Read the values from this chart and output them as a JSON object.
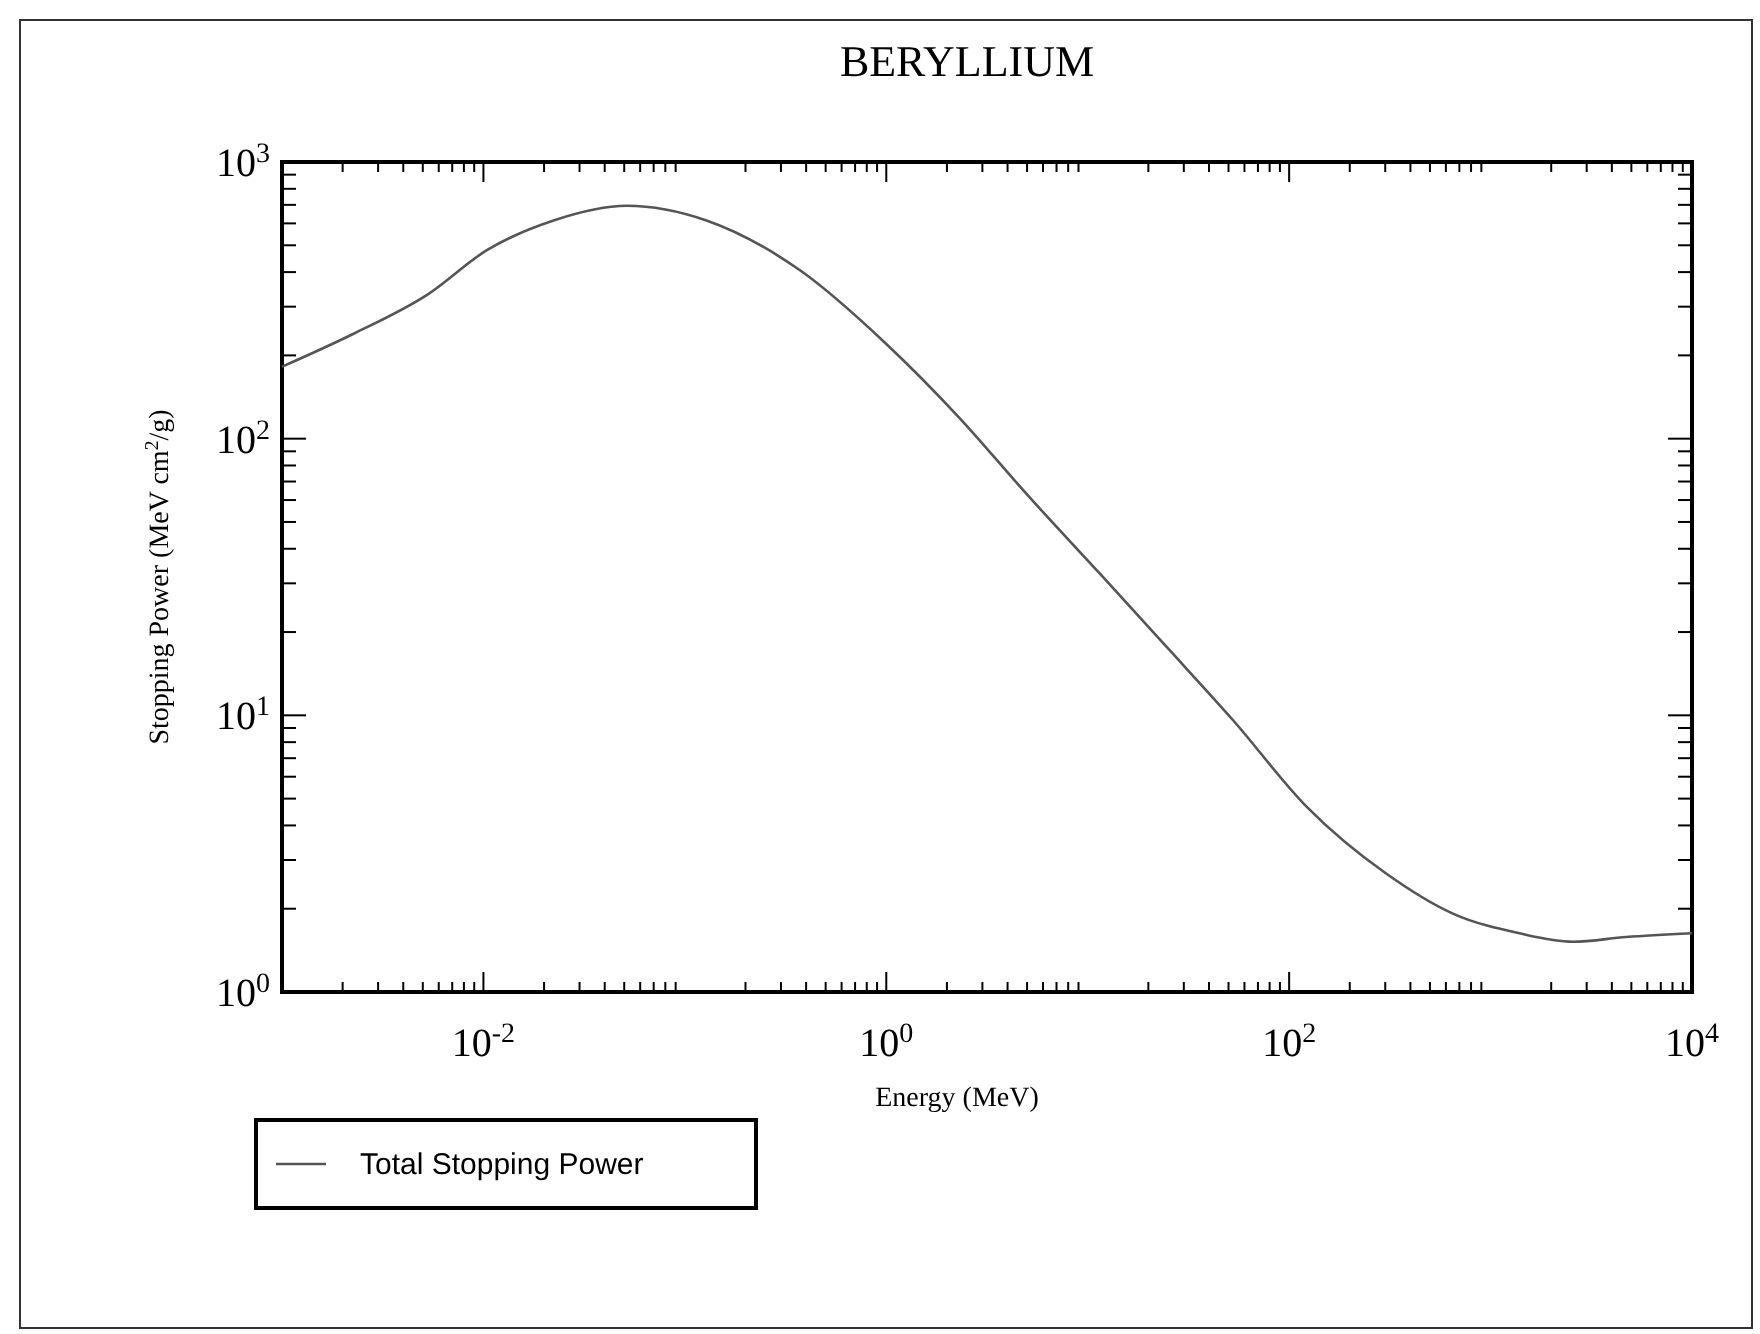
{
  "chart_data": {
    "type": "line",
    "title": "BERYLLIUM",
    "xlabel": "Energy (MeV)",
    "ylabel": "Stopping Power (MeV cm$^{2}$/g)",
    "log": "xy",
    "xlim": [
      0.001,
      10000
    ],
    "ylim": [
      1,
      1000
    ],
    "xticks": [
      {
        "value": 0.01,
        "label": "10$^{-2}$"
      },
      {
        "value": 1,
        "label": "10$^{0}$"
      },
      {
        "value": 100,
        "label": "10$^{2}$"
      },
      {
        "value": 10000,
        "label": "10$^{4}$"
      }
    ],
    "yticks": [
      {
        "value": 1,
        "label": "10$^{0}$"
      },
      {
        "value": 10,
        "label": "10$^{1}$"
      },
      {
        "value": 100,
        "label": "10$^{2}$"
      },
      {
        "value": 1000,
        "label": "10$^{3}$"
      }
    ],
    "grid": false,
    "legend": "bottom left",
    "line_style": "solid",
    "series": [
      {
        "name": "Total Stopping Power",
        "color": "#555555",
        "x": [
          0.001,
          0.00228,
          0.00525,
          0.0104,
          0.0223,
          0.0515,
          0.128,
          0.373,
          1.0,
          2.33,
          4.98,
          11.5,
          24.6,
          52.7,
          122,
          303,
          650,
          1390,
          2560,
          4710,
          10000
        ],
        "values": [
          182,
          240,
          331,
          480,
          615,
          695,
          615,
          406,
          220,
          118,
          63,
          32.5,
          17.7,
          9.6,
          4.68,
          2.68,
          1.92,
          1.63,
          1.52,
          1.58,
          1.63
        ]
      }
    ]
  }
}
